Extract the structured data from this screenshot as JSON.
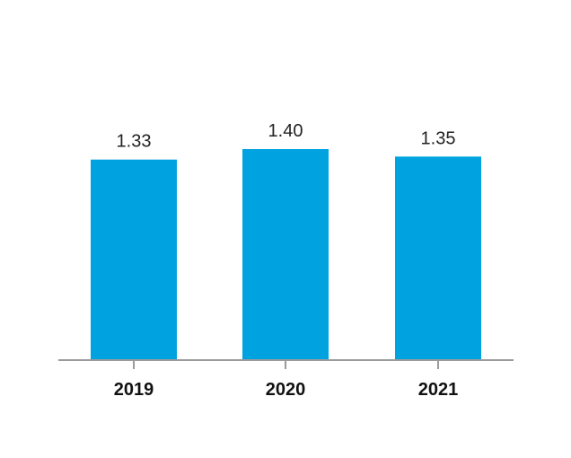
{
  "chart_data": {
    "type": "bar",
    "categories": [
      "2019",
      "2020",
      "2021"
    ],
    "values": [
      1.33,
      1.4,
      1.35
    ],
    "value_labels": [
      "1.33",
      "1.40",
      "1.35"
    ],
    "title": "",
    "xlabel": "",
    "ylabel": "",
    "ylim": [
      0,
      1.4
    ],
    "grid": false,
    "legend": "none",
    "colors": {
      "bar": "#00A3E0",
      "axis": "#9B9B9B",
      "text": "#222222"
    }
  }
}
